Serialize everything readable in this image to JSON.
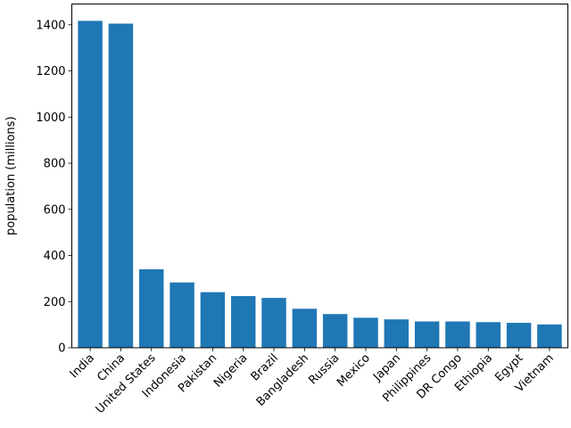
{
  "chart_data": {
    "type": "bar",
    "title": "",
    "xlabel": "",
    "ylabel": "population (millions)",
    "ylim": [
      0,
      1490
    ],
    "yticks": [
      0,
      200,
      400,
      600,
      800,
      1000,
      1200,
      1400
    ],
    "grid": false,
    "bar_color": "#1f77b4",
    "categories": [
      "India",
      "China",
      "United States",
      "Indonesia",
      "Pakistan",
      "Nigeria",
      "Brazil",
      "Bangladesh",
      "Russia",
      "Mexico",
      "Japan",
      "Philippines",
      "DR Congo",
      "Ethiopia",
      "Egypt",
      "Vietnam"
    ],
    "values": [
      1417,
      1405,
      340,
      283,
      241,
      224,
      216,
      169,
      146,
      130,
      123,
      114,
      114,
      111,
      108,
      101
    ]
  }
}
